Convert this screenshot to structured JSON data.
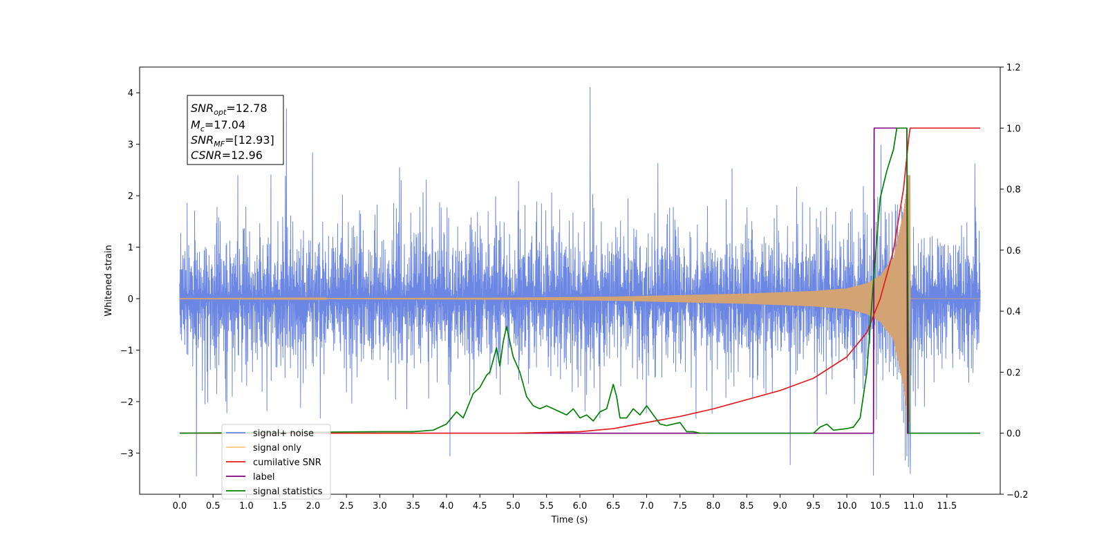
{
  "chart_data": {
    "type": "line",
    "xlabel": "Time (s)",
    "ylabel_left": "Whitened strain",
    "ylabel_right": "",
    "xlim": [
      -0.6,
      12.3
    ],
    "ylim_left": [
      -3.8,
      4.5
    ],
    "ylim_right": [
      -0.2,
      1.2
    ],
    "x_ticks": [
      "0.0",
      "0.5",
      "1.0",
      "1.5",
      "2.0",
      "2.5",
      "3.0",
      "3.5",
      "4.0",
      "4.5",
      "5.0",
      "5.5",
      "6.0",
      "6.5",
      "7.0",
      "7.5",
      "8.0",
      "8.5",
      "9.0",
      "9.5",
      "10.0",
      "10.5",
      "11.0",
      "11.5"
    ],
    "y_ticks_left": [
      "4",
      "3",
      "2",
      "1",
      "0",
      "−1",
      "−2",
      "−3"
    ],
    "y_ticks_right": [
      "1.2",
      "1.0",
      "0.8",
      "0.6",
      "0.4",
      "0.2",
      "0.0",
      "−0.2"
    ],
    "grid": false,
    "legend_position": "lower-left",
    "colors": {
      "signal_noise": "#6b86e3",
      "signal_only": "#d4a373",
      "signal_only_legend": "#ffc87a",
      "cumulative_snr": "#e41a1c",
      "label": "#800080",
      "signal_statistics": "#008000"
    },
    "annotation": {
      "snr_opt": {
        "main": "SNR",
        "sub": "opt",
        "value": "=12.78"
      },
      "mc": {
        "main": "M",
        "sub": "c",
        "value": "=17.04"
      },
      "snr_mf": {
        "main": "SNR",
        "sub": "MF",
        "value": "=[12.93]"
      },
      "csnr": {
        "main": "CSNR",
        "value": "=12.96"
      }
    },
    "series": [
      {
        "name": "signal+ noise",
        "axis": "left",
        "description_of_values": "Gaussian-like whitened noise centered at 0, typical amplitude about ±1.5, peaks to about 4.1 near 6.15 s",
        "x_range": [
          0.0,
          12.0
        ],
        "envelope_max": 2.3,
        "notable_peaks": [
          [
            6.15,
            4.1
          ],
          [
            1.6,
            3.7
          ],
          [
            0.25,
            -3.45
          ],
          [
            10.4,
            -3.4
          ],
          [
            10.95,
            -3.4
          ],
          [
            4.05,
            -3.05
          ],
          [
            9.15,
            -3.1
          ]
        ]
      },
      {
        "name": "signal only",
        "axis": "left",
        "description_of_values": "chirp near zero growing in amplitude until merger at about 10.9 s",
        "amplitude_points": [
          [
            0.0,
            0.005
          ],
          [
            5.0,
            0.02
          ],
          [
            6.5,
            0.04
          ],
          [
            7.5,
            0.07
          ],
          [
            8.5,
            0.1
          ],
          [
            9.5,
            0.15
          ],
          [
            10.0,
            0.2
          ],
          [
            10.3,
            0.3
          ],
          [
            10.5,
            0.45
          ],
          [
            10.7,
            0.8
          ],
          [
            10.85,
            1.7
          ],
          [
            10.92,
            2.4
          ]
        ],
        "end_x": 10.95
      },
      {
        "name": "cumilative SNR",
        "axis": "right",
        "x": [
          0.0,
          5.0,
          6.0,
          6.5,
          7.0,
          7.5,
          8.0,
          8.5,
          9.0,
          9.5,
          10.0,
          10.3,
          10.5,
          10.7,
          10.85,
          10.93,
          10.95,
          12.0
        ],
        "y": [
          0.0,
          0.0,
          0.005,
          0.015,
          0.035,
          0.055,
          0.08,
          0.11,
          0.14,
          0.18,
          0.25,
          0.33,
          0.44,
          0.6,
          0.8,
          0.97,
          1.0,
          1.0
        ]
      },
      {
        "name": "label",
        "axis": "right",
        "x": [
          0.0,
          10.4,
          10.41,
          10.9,
          10.91,
          12.0
        ],
        "y": [
          0.0,
          0.0,
          1.0,
          1.0,
          0.0,
          0.0
        ]
      },
      {
        "name": "signal statistics",
        "axis": "right",
        "x": [
          0.0,
          3.0,
          3.5,
          3.8,
          4.0,
          4.15,
          4.25,
          4.4,
          4.5,
          4.6,
          4.65,
          4.75,
          4.8,
          4.85,
          4.9,
          5.0,
          5.1,
          5.2,
          5.3,
          5.4,
          5.5,
          5.6,
          5.7,
          5.8,
          5.9,
          6.0,
          6.1,
          6.2,
          6.3,
          6.4,
          6.5,
          6.55,
          6.6,
          6.7,
          6.8,
          6.9,
          7.0,
          7.1,
          7.2,
          7.3,
          7.4,
          7.5,
          7.6,
          7.7,
          7.8,
          8.0,
          8.2,
          9.5,
          9.6,
          9.7,
          9.8,
          10.0,
          10.1,
          10.2,
          10.3,
          10.4,
          10.5,
          10.6,
          10.7,
          10.75,
          10.85,
          10.9,
          10.93,
          12.0
        ],
        "y": [
          0.0,
          0.005,
          0.005,
          0.01,
          0.03,
          0.07,
          0.05,
          0.13,
          0.15,
          0.19,
          0.2,
          0.28,
          0.22,
          0.3,
          0.35,
          0.25,
          0.2,
          0.12,
          0.09,
          0.08,
          0.09,
          0.08,
          0.07,
          0.06,
          0.08,
          0.05,
          0.06,
          0.04,
          0.07,
          0.08,
          0.16,
          0.12,
          0.05,
          0.05,
          0.08,
          0.06,
          0.09,
          0.06,
          0.03,
          0.025,
          0.03,
          0.035,
          0.005,
          0.005,
          0.0,
          0.0,
          0.0,
          0.0,
          0.02,
          0.03,
          0.01,
          0.015,
          0.02,
          0.05,
          0.2,
          0.5,
          0.77,
          0.86,
          0.93,
          1.0,
          1.0,
          1.0,
          0.0,
          0.0
        ]
      }
    ],
    "legend": [
      {
        "name": "signal+ noise",
        "color_key": "signal_noise"
      },
      {
        "name": "signal only",
        "color_key": "signal_only_legend"
      },
      {
        "name": "cumilative SNR",
        "color_key": "cumulative_snr"
      },
      {
        "name": "label",
        "color_key": "label"
      },
      {
        "name": "signal statistics",
        "color_key": "signal_statistics"
      }
    ]
  }
}
